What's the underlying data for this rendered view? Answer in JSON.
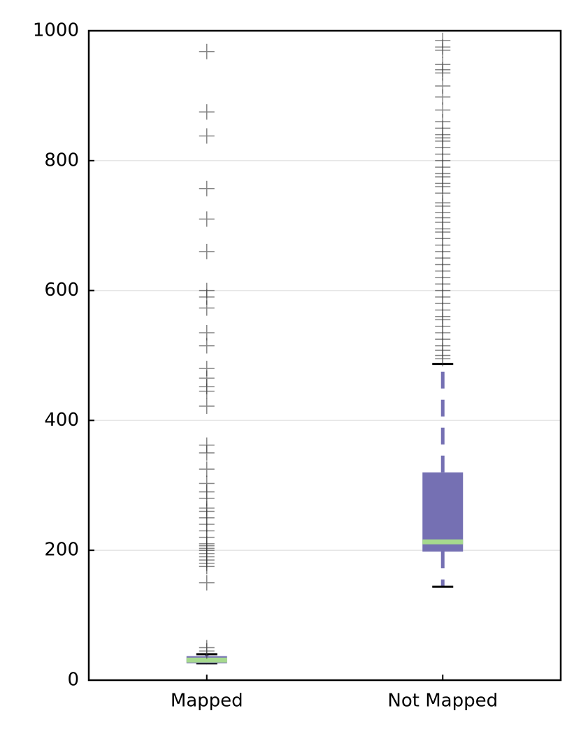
{
  "chart_data": {
    "type": "box",
    "categories": [
      "Mapped",
      "Not Mapped"
    ],
    "boxes": [
      {
        "whislo": 26,
        "q1": 26,
        "med": 31,
        "q3": 37,
        "whishi": 40,
        "fliers": [
          968,
          875,
          838,
          757,
          710,
          660,
          600,
          590,
          573,
          535,
          515,
          480,
          465,
          452,
          445,
          422,
          362,
          350,
          325,
          303,
          290,
          280,
          265,
          260,
          250,
          240,
          230,
          220,
          210,
          207,
          203,
          200,
          195,
          190,
          185,
          180,
          175,
          150,
          50,
          45
        ]
      },
      {
        "whislo": 144,
        "q1": 198,
        "med": 213,
        "q3": 320,
        "whishi": 487,
        "fliers": [
          985,
          975,
          970,
          948,
          940,
          935,
          915,
          898,
          878,
          860,
          850,
          840,
          835,
          830,
          820,
          810,
          800,
          790,
          780,
          775,
          765,
          760,
          750,
          735,
          730,
          720,
          712,
          705,
          695,
          690,
          680,
          670,
          660,
          650,
          640,
          630,
          620,
          610,
          600,
          590,
          580,
          570,
          560,
          555,
          545,
          535,
          525,
          515,
          508,
          500,
          495
        ]
      }
    ],
    "box_color": "#7570b3",
    "median_color": "#a6d98e",
    "flier_color": "#333333",
    "ylim": [
      0,
      1000
    ],
    "yticks": [
      0,
      200,
      400,
      600,
      800,
      1000
    ],
    "grid": true
  }
}
